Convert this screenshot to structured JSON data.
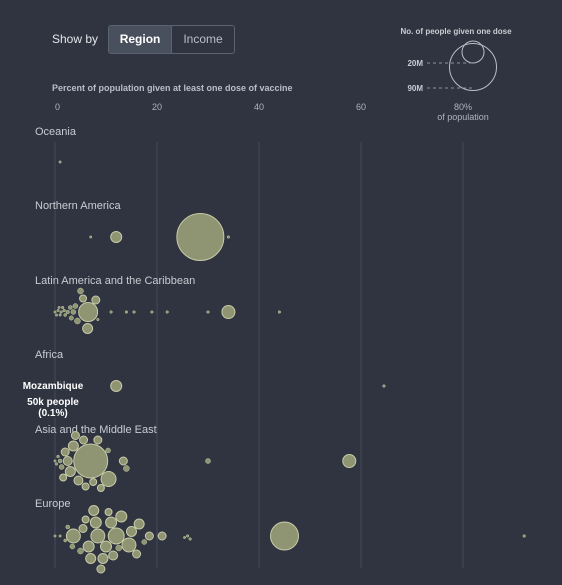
{
  "toolbar": {
    "show_by_label": "Show by",
    "options": [
      {
        "label": "Region",
        "selected": true
      },
      {
        "label": "Income",
        "selected": false
      }
    ]
  },
  "legend": {
    "title": "No. of people given one dose",
    "sizes": [
      {
        "label": "20M",
        "value": 20000000
      },
      {
        "label": "90M",
        "value": 90000000
      }
    ]
  },
  "tooltip": {
    "name": "Mozambique",
    "people": "50k people",
    "percent": "(0.1%)"
  },
  "colors": {
    "background": "#2f3440",
    "bubble_fill": "#8f9473",
    "bubble_stroke": "#c7cba6",
    "grid": "#444a56",
    "text": "#d6d8dc"
  },
  "chart_data": {
    "type": "scatter",
    "xlabel": "Percent of population given at least one dose of vaccine",
    "x_ticks": [
      "0",
      "20",
      "40",
      "60",
      "80%"
    ],
    "x_tick_values": [
      0,
      20,
      40,
      60,
      80
    ],
    "x_unit_label": "of population",
    "xlim": [
      0,
      80
    ],
    "size_encoding": "No. of people given one dose",
    "groups": [
      {
        "name": "Oceania",
        "points": [
          {
            "x": 1,
            "r": 1.2
          }
        ]
      },
      {
        "name": "Northern America",
        "points": [
          {
            "x": 7,
            "r": 1.2
          },
          {
            "x": 12,
            "r": 5.5
          },
          {
            "x": 28.5,
            "r": 23.5
          },
          {
            "x": 34,
            "r": 1.3
          }
        ]
      },
      {
        "name": "Latin America and the Caribbean",
        "points": [
          {
            "x": 0,
            "r": 1.2
          },
          {
            "x": 0.3,
            "r": 1.2
          },
          {
            "x": 0.6,
            "r": 1.2
          },
          {
            "x": 0.8,
            "r": 1.2
          },
          {
            "x": 1,
            "r": 1.2
          },
          {
            "x": 1.2,
            "r": 1.3
          },
          {
            "x": 1.5,
            "r": 1.3
          },
          {
            "x": 1.8,
            "r": 1.4
          },
          {
            "x": 2,
            "r": 1.5
          },
          {
            "x": 2.5,
            "r": 1.8
          },
          {
            "x": 3,
            "r": 2
          },
          {
            "x": 3.2,
            "r": 2.2
          },
          {
            "x": 3.6,
            "r": 2.5
          },
          {
            "x": 4,
            "r": 2.5
          },
          {
            "x": 4.4,
            "r": 3
          },
          {
            "x": 5,
            "r": 3
          },
          {
            "x": 5.5,
            "r": 3.5
          },
          {
            "x": 6.5,
            "r": 9.5
          },
          {
            "x": 6.4,
            "r": 5
          },
          {
            "x": 8,
            "r": 4
          },
          {
            "x": 8.4,
            "r": 1.3
          },
          {
            "x": 11,
            "r": 1.3
          },
          {
            "x": 14,
            "r": 1.3
          },
          {
            "x": 15.5,
            "r": 1.3
          },
          {
            "x": 19,
            "r": 1.3
          },
          {
            "x": 22,
            "r": 1.3
          },
          {
            "x": 30,
            "r": 1.3
          },
          {
            "x": 34,
            "r": 6.5
          },
          {
            "x": 44,
            "r": 1.3
          }
        ]
      },
      {
        "name": "Africa",
        "points": [
          {
            "x": 0,
            "r": 1.2
          },
          {
            "x": 0.2,
            "r": 1.2
          },
          {
            "x": 0.4,
            "r": 1.2
          },
          {
            "x": 0.6,
            "r": 1.2
          },
          {
            "x": 0.8,
            "r": 1.2
          },
          {
            "x": 1,
            "r": 1.2
          },
          {
            "x": 1.2,
            "r": 1.2
          },
          {
            "x": 1.4,
            "r": 1.2
          },
          {
            "x": 1.6,
            "r": 1.2
          },
          {
            "x": 1.8,
            "r": 1.2
          },
          {
            "x": 2.2,
            "r": 1.2
          },
          {
            "x": 12,
            "r": 5.5
          },
          {
            "x": 64.5,
            "r": 1.3
          }
        ]
      },
      {
        "name": "Asia and the Middle East",
        "points": [
          {
            "x": 0,
            "r": 1.2
          },
          {
            "x": 0.3,
            "r": 1.3
          },
          {
            "x": 0.6,
            "r": 1.4
          },
          {
            "x": 1,
            "r": 2
          },
          {
            "x": 1.3,
            "r": 2.5
          },
          {
            "x": 1.6,
            "r": 3.5
          },
          {
            "x": 2,
            "r": 4
          },
          {
            "x": 2.5,
            "r": 4.5
          },
          {
            "x": 3,
            "r": 5
          },
          {
            "x": 3.6,
            "r": 5
          },
          {
            "x": 4,
            "r": 4
          },
          {
            "x": 4.6,
            "r": 4.5
          },
          {
            "x": 5.6,
            "r": 4
          },
          {
            "x": 6,
            "r": 3.5
          },
          {
            "x": 7,
            "r": 17
          },
          {
            "x": 7.5,
            "r": 3.5
          },
          {
            "x": 8.4,
            "r": 4
          },
          {
            "x": 9,
            "r": 3.5
          },
          {
            "x": 10.4,
            "r": 2.5
          },
          {
            "x": 10.5,
            "r": 7.5
          },
          {
            "x": 13.4,
            "r": 4
          },
          {
            "x": 14,
            "r": 3
          },
          {
            "x": 30,
            "r": 2.5
          },
          {
            "x": 57.7,
            "r": 6.5
          }
        ]
      },
      {
        "name": "Europe",
        "points": [
          {
            "x": 0,
            "r": 1.2
          },
          {
            "x": 1,
            "r": 1.2
          },
          {
            "x": 2,
            "r": 1.5
          },
          {
            "x": 2.5,
            "r": 2
          },
          {
            "x": 3.4,
            "r": 2.5
          },
          {
            "x": 3.6,
            "r": 7
          },
          {
            "x": 5,
            "r": 3
          },
          {
            "x": 5.5,
            "r": 4
          },
          {
            "x": 6,
            "r": 3.5
          },
          {
            "x": 6.6,
            "r": 5.5
          },
          {
            "x": 7,
            "r": 5
          },
          {
            "x": 7.6,
            "r": 5
          },
          {
            "x": 8,
            "r": 5.5
          },
          {
            "x": 8.4,
            "r": 7
          },
          {
            "x": 9,
            "r": 4
          },
          {
            "x": 9.4,
            "r": 5
          },
          {
            "x": 10,
            "r": 5.5
          },
          {
            "x": 10.5,
            "r": 3.5
          },
          {
            "x": 11,
            "r": 5.5
          },
          {
            "x": 11.4,
            "r": 4.5
          },
          {
            "x": 12,
            "r": 8
          },
          {
            "x": 12.5,
            "r": 3
          },
          {
            "x": 13,
            "r": 5.5
          },
          {
            "x": 14.5,
            "r": 7
          },
          {
            "x": 15,
            "r": 5
          },
          {
            "x": 16,
            "r": 4
          },
          {
            "x": 16.5,
            "r": 5
          },
          {
            "x": 17.5,
            "r": 2.5
          },
          {
            "x": 18.5,
            "r": 4
          },
          {
            "x": 21,
            "r": 4
          },
          {
            "x": 25.4,
            "r": 1.2
          },
          {
            "x": 26,
            "r": 1.3
          },
          {
            "x": 26.5,
            "r": 1.3
          },
          {
            "x": 45,
            "r": 14
          },
          {
            "x": 92,
            "r": 1.3
          }
        ]
      }
    ]
  }
}
